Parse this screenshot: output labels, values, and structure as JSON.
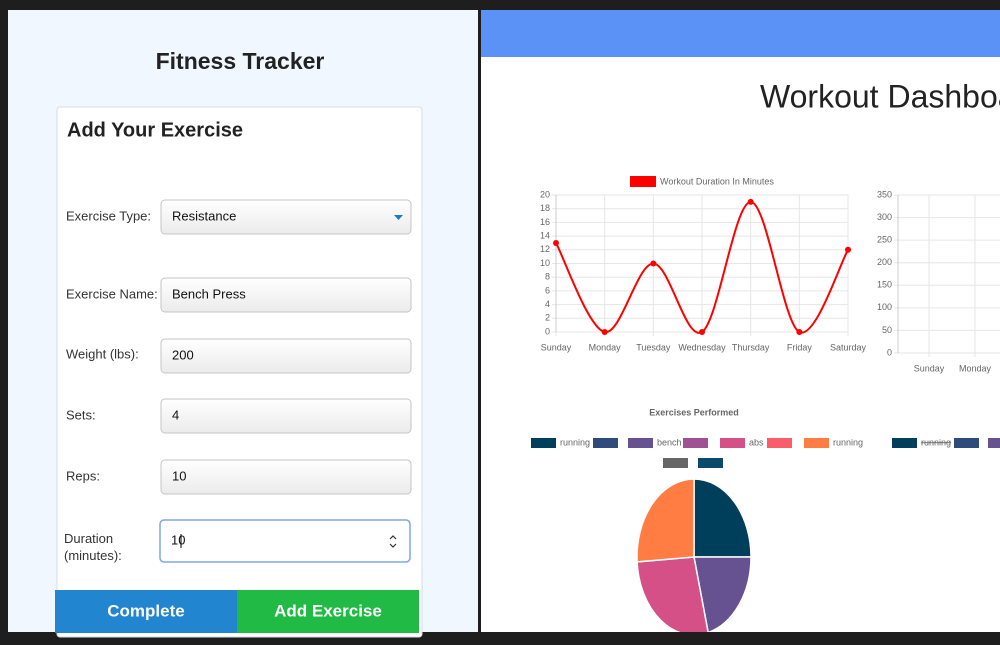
{
  "app_title": "Fitness Tracker",
  "form": {
    "title": "Add Your Exercise",
    "fields": [
      {
        "label": "Exercise Type:",
        "value": "Resistance"
      },
      {
        "label": "Exercise Name:",
        "value": "Bench Press"
      },
      {
        "label": "Weight (lbs):",
        "value": "200"
      },
      {
        "label": "Sets:",
        "value": "4"
      },
      {
        "label": "Reps:",
        "value": "10"
      },
      {
        "label": "Duration (minutes):",
        "value": "10"
      }
    ],
    "buttons": [
      "Complete",
      "Add Exercise"
    ]
  },
  "dashboard_title": "Workout Dashboard",
  "chart_data": [
    {
      "type": "line",
      "categories": [
        "Sunday",
        "Monday",
        "Tuesday",
        "Wednesday",
        "Thursday",
        "Friday",
        "Saturday"
      ],
      "series": [
        {
          "name": "Workout Duration In Minutes",
          "color": "#ff0000",
          "values": [
            13,
            0,
            10,
            0,
            19,
            0,
            12
          ]
        }
      ],
      "ylim": [
        0,
        20
      ],
      "yticks": [
        0,
        2,
        4,
        6,
        8,
        10,
        12,
        14,
        16,
        18,
        20
      ],
      "grid": true
    },
    {
      "type": "line",
      "categories": [
        "Sunday",
        "Monday"
      ],
      "series": [],
      "ylim": [
        0,
        350
      ],
      "yticks": [
        0,
        50,
        100,
        150,
        200,
        250,
        300,
        350
      ],
      "grid": true
    },
    {
      "type": "pie",
      "title": "Exercises Performed",
      "categories": [
        "running",
        null,
        "bench",
        null,
        "abs",
        null,
        "running",
        null,
        null
      ],
      "colors": [
        "#003f5c",
        "#2f4b7c",
        "#665191",
        "#a05195",
        "#d45087",
        "#f95d6a",
        "#ff7c43",
        "#666666",
        "#0b4a6b"
      ],
      "values": [
        25,
        0,
        21,
        0,
        28,
        0,
        26,
        0,
        0
      ]
    },
    {
      "type": "pie",
      "categories": [
        "running",
        null,
        null
      ],
      "colors": [
        "#003f5c",
        "#2f4b7c",
        "#665191"
      ],
      "hidden": [
        true,
        false,
        false
      ]
    }
  ]
}
